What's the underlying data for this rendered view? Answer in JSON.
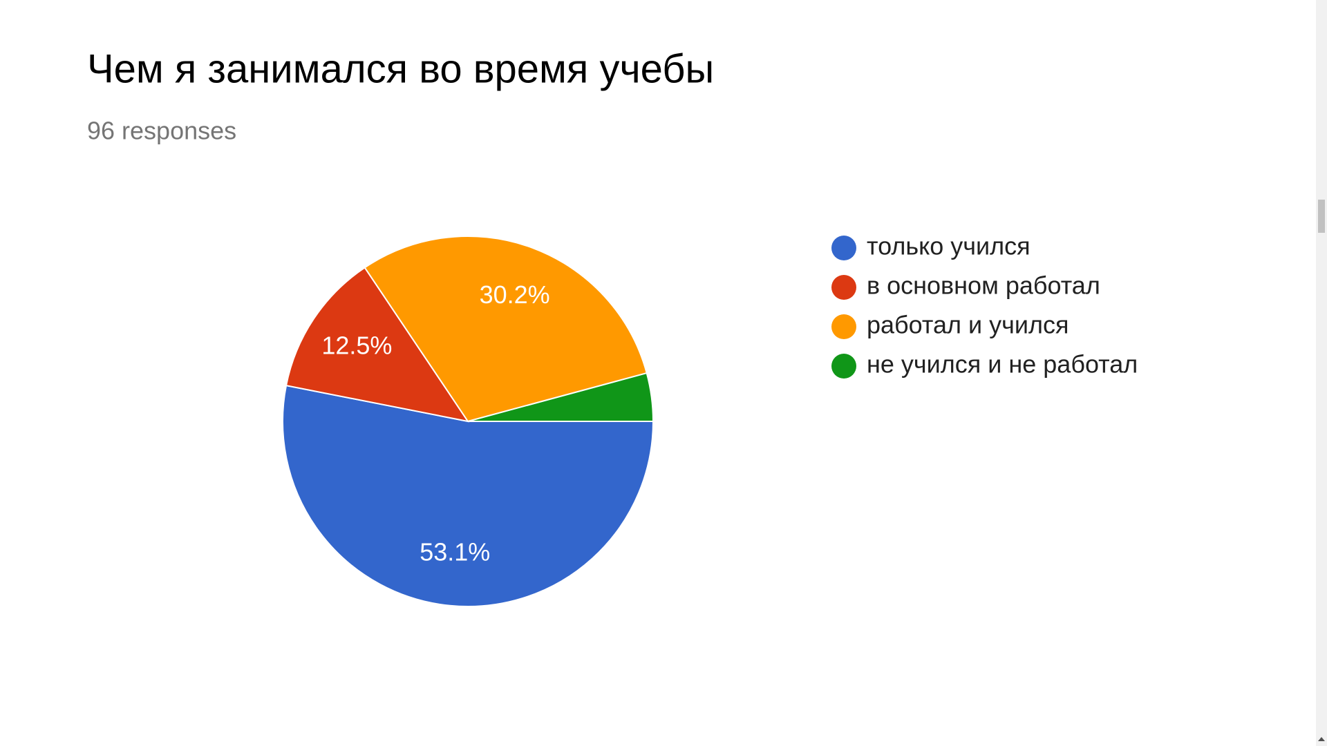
{
  "chart_data": {
    "type": "pie",
    "title": "Чем я занимался во время учебы",
    "subtitle": "96 responses",
    "categories": [
      "только учился",
      "в основном работал",
      "работал и учился",
      "не учился и не работал"
    ],
    "values": [
      53.1,
      12.5,
      30.2,
      4.2
    ],
    "value_labels": [
      "53.1%",
      "12.5%",
      "30.2%",
      null
    ],
    "colors": [
      "#3366cc",
      "#dc3912",
      "#ff9900",
      "#109618"
    ],
    "legend": "right"
  }
}
